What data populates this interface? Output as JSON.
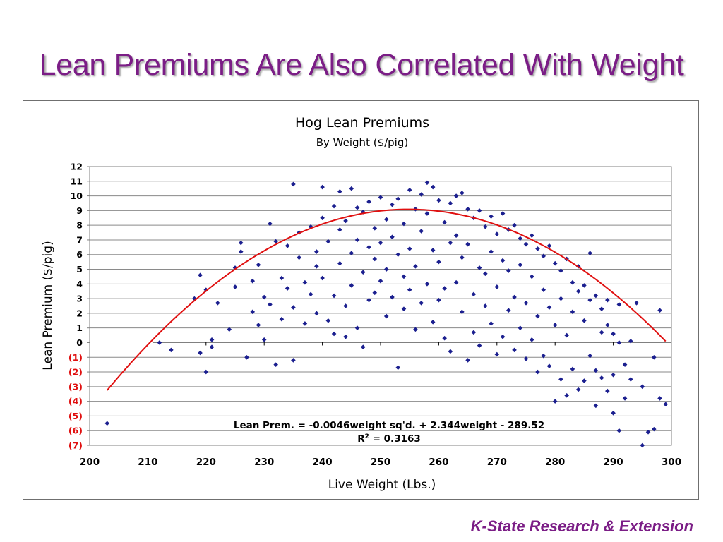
{
  "slide": {
    "title": "Lean Premiums Are Also Correlated With Weight",
    "footer": "K-State Research & Extension"
  },
  "colors": {
    "title": "#7b1d86",
    "points": "#1b1f8f",
    "trendline": "#e01010",
    "negative_ticks": "#e01010"
  },
  "chart_data": {
    "type": "scatter",
    "title": "Hog Lean Premiums",
    "subtitle": "By Weight ($/pig)",
    "xlabel": "Live Weight (Lbs.)",
    "ylabel": "Lean Premium ($/pig)",
    "xlim": [
      200,
      300
    ],
    "ylim": [
      -7,
      12
    ],
    "x_ticks": [
      "200",
      "210",
      "220",
      "230",
      "240",
      "250",
      "260",
      "270",
      "280",
      "290",
      "300"
    ],
    "y_ticks": [
      {
        "value": 12,
        "label": "12"
      },
      {
        "value": 11,
        "label": "11"
      },
      {
        "value": 10,
        "label": "10"
      },
      {
        "value": 9,
        "label": "9"
      },
      {
        "value": 8,
        "label": "8"
      },
      {
        "value": 7,
        "label": "7"
      },
      {
        "value": 6,
        "label": "6"
      },
      {
        "value": 5,
        "label": "5"
      },
      {
        "value": 4,
        "label": "4"
      },
      {
        "value": 3,
        "label": "3"
      },
      {
        "value": 2,
        "label": "2"
      },
      {
        "value": 1,
        "label": "1"
      },
      {
        "value": 0,
        "label": "0"
      },
      {
        "value": -1,
        "label": "(1)"
      },
      {
        "value": -2,
        "label": "(2)"
      },
      {
        "value": -3,
        "label": "(3)"
      },
      {
        "value": -4,
        "label": "(4)"
      },
      {
        "value": -5,
        "label": "(5)"
      },
      {
        "value": -6,
        "label": "(6)"
      },
      {
        "value": -7,
        "label": "(7)"
      }
    ],
    "grid": true,
    "equation": "Lean Prem. = -0.0046weight sq'd. + 2.344weight - 289.52",
    "r_squared_label": "R",
    "r_squared_sup": "2",
    "r_squared_value": " = 0.3163",
    "trendline": {
      "type": "quadratic",
      "a": -0.0046,
      "b": 2.344,
      "c": -289.52,
      "x_range": [
        203,
        299
      ]
    },
    "series": [
      {
        "points": [
          [
            203,
            -5.5
          ],
          [
            212,
            0
          ],
          [
            214,
            -0.5
          ],
          [
            218,
            3
          ],
          [
            219,
            4.6
          ],
          [
            219,
            -0.7
          ],
          [
            220,
            3.6
          ],
          [
            220,
            -2
          ],
          [
            221,
            0.2
          ],
          [
            221,
            -0.3
          ],
          [
            222,
            2.7
          ],
          [
            224,
            0.9
          ],
          [
            225,
            3.8
          ],
          [
            225,
            5.1
          ],
          [
            226,
            6.8
          ],
          [
            226,
            6.2
          ],
          [
            227,
            -1
          ],
          [
            228,
            4.2
          ],
          [
            228,
            2.1
          ],
          [
            229,
            1.2
          ],
          [
            229,
            5.3
          ],
          [
            230,
            3.1
          ],
          [
            230,
            0.2
          ],
          [
            231,
            8.1
          ],
          [
            231,
            2.6
          ],
          [
            232,
            6.9
          ],
          [
            232,
            -1.5
          ],
          [
            233,
            4.4
          ],
          [
            233,
            1.6
          ],
          [
            234,
            3.7
          ],
          [
            234,
            6.6
          ],
          [
            235,
            10.8
          ],
          [
            235,
            2.4
          ],
          [
            235,
            -1.2
          ],
          [
            236,
            5.8
          ],
          [
            236,
            7.5
          ],
          [
            237,
            4.1
          ],
          [
            237,
            1.3
          ],
          [
            238,
            7.9
          ],
          [
            238,
            3.3
          ],
          [
            239,
            6.2
          ],
          [
            239,
            5.2
          ],
          [
            239,
            2.0
          ],
          [
            240,
            10.6
          ],
          [
            240,
            8.5
          ],
          [
            240,
            4.4
          ],
          [
            241,
            1.5
          ],
          [
            241,
            6.9
          ],
          [
            242,
            9.3
          ],
          [
            242,
            3.2
          ],
          [
            242,
            0.6
          ],
          [
            243,
            10.3
          ],
          [
            243,
            7.7
          ],
          [
            243,
            5.4
          ],
          [
            244,
            2.5
          ],
          [
            244,
            8.3
          ],
          [
            244,
            0.4
          ],
          [
            245,
            10.5
          ],
          [
            245,
            6.1
          ],
          [
            245,
            3.9
          ],
          [
            246,
            9.2
          ],
          [
            246,
            7.0
          ],
          [
            246,
            1.0
          ],
          [
            247,
            4.8
          ],
          [
            247,
            8.9
          ],
          [
            247,
            -0.3
          ],
          [
            248,
            6.5
          ],
          [
            248,
            2.9
          ],
          [
            248,
            9.6
          ],
          [
            249,
            5.7
          ],
          [
            249,
            7.8
          ],
          [
            249,
            3.4
          ],
          [
            250,
            9.9
          ],
          [
            250,
            4.2
          ],
          [
            250,
            6.8
          ],
          [
            251,
            1.8
          ],
          [
            251,
            8.4
          ],
          [
            251,
            5.0
          ],
          [
            252,
            9.4
          ],
          [
            252,
            3.1
          ],
          [
            252,
            7.2
          ],
          [
            253,
            -1.7
          ],
          [
            253,
            6.0
          ],
          [
            253,
            9.8
          ],
          [
            254,
            4.5
          ],
          [
            254,
            8.1
          ],
          [
            254,
            2.3
          ],
          [
            255,
            10.4
          ],
          [
            255,
            6.4
          ],
          [
            255,
            3.6
          ],
          [
            256,
            9.1
          ],
          [
            256,
            5.2
          ],
          [
            256,
            0.9
          ],
          [
            257,
            10.1
          ],
          [
            257,
            7.6
          ],
          [
            257,
            2.7
          ],
          [
            258,
            10.9
          ],
          [
            258,
            4.0
          ],
          [
            258,
            8.8
          ],
          [
            259,
            10.6
          ],
          [
            259,
            6.3
          ],
          [
            259,
            1.4
          ],
          [
            260,
            9.7
          ],
          [
            260,
            5.5
          ],
          [
            260,
            2.9
          ],
          [
            261,
            8.2
          ],
          [
            261,
            3.7
          ],
          [
            261,
            0.3
          ],
          [
            262,
            9.5
          ],
          [
            262,
            6.8
          ],
          [
            262,
            -0.6
          ],
          [
            263,
            10.0
          ],
          [
            263,
            4.1
          ],
          [
            263,
            7.3
          ],
          [
            264,
            10.2
          ],
          [
            264,
            2.1
          ],
          [
            264,
            5.8
          ],
          [
            265,
            9.1
          ],
          [
            265,
            -1.2
          ],
          [
            265,
            6.7
          ],
          [
            266,
            8.5
          ],
          [
            266,
            3.3
          ],
          [
            266,
            0.7
          ],
          [
            267,
            9.0
          ],
          [
            267,
            5.1
          ],
          [
            267,
            -0.2
          ],
          [
            268,
            7.9
          ],
          [
            268,
            2.5
          ],
          [
            268,
            4.7
          ],
          [
            269,
            8.6
          ],
          [
            269,
            1.3
          ],
          [
            269,
            6.2
          ],
          [
            270,
            7.4
          ],
          [
            270,
            3.8
          ],
          [
            270,
            -0.8
          ],
          [
            271,
            8.8
          ],
          [
            271,
            5.6
          ],
          [
            271,
            0.4
          ],
          [
            272,
            7.7
          ],
          [
            272,
            2.2
          ],
          [
            272,
            4.9
          ],
          [
            273,
            8.0
          ],
          [
            273,
            -0.5
          ],
          [
            273,
            3.1
          ],
          [
            274,
            7.1
          ],
          [
            274,
            5.3
          ],
          [
            274,
            1.0
          ],
          [
            275,
            6.7
          ],
          [
            275,
            2.7
          ],
          [
            275,
            -1.1
          ],
          [
            276,
            7.3
          ],
          [
            276,
            4.5
          ],
          [
            276,
            0.2
          ],
          [
            277,
            6.4
          ],
          [
            277,
            1.8
          ],
          [
            277,
            -2.0
          ],
          [
            278,
            5.9
          ],
          [
            278,
            3.6
          ],
          [
            278,
            -0.9
          ],
          [
            279,
            6.6
          ],
          [
            279,
            2.4
          ],
          [
            279,
            -1.6
          ],
          [
            280,
            5.4
          ],
          [
            280,
            1.2
          ],
          [
            280,
            -4.0
          ],
          [
            281,
            4.9
          ],
          [
            281,
            3.0
          ],
          [
            281,
            -2.5
          ],
          [
            282,
            5.7
          ],
          [
            282,
            0.5
          ],
          [
            282,
            -3.6
          ],
          [
            283,
            4.1
          ],
          [
            283,
            2.1
          ],
          [
            283,
            -1.8
          ],
          [
            284,
            5.2
          ],
          [
            284,
            3.5
          ],
          [
            284,
            -3.2
          ],
          [
            285,
            3.9
          ],
          [
            285,
            1.5
          ],
          [
            285,
            -2.6
          ],
          [
            286,
            6.1
          ],
          [
            286,
            2.9
          ],
          [
            286,
            -0.9
          ],
          [
            287,
            3.2
          ],
          [
            287,
            -1.9
          ],
          [
            287,
            -4.3
          ],
          [
            288,
            2.3
          ],
          [
            288,
            -2.4
          ],
          [
            288,
            0.7
          ],
          [
            289,
            2.9
          ],
          [
            289,
            1.2
          ],
          [
            289,
            -3.3
          ],
          [
            290,
            0.6
          ],
          [
            290,
            -4.8
          ],
          [
            290,
            -2.2
          ],
          [
            291,
            2.6
          ],
          [
            291,
            -6.0
          ],
          [
            291,
            0.0
          ],
          [
            292,
            -1.5
          ],
          [
            292,
            -3.8
          ],
          [
            293,
            -2.5
          ],
          [
            293,
            0.1
          ],
          [
            294,
            2.7
          ],
          [
            295,
            -3.0
          ],
          [
            295,
            -7.0
          ],
          [
            296,
            -6.1
          ],
          [
            297,
            -5.9
          ],
          [
            297,
            -1.0
          ],
          [
            298,
            2.2
          ],
          [
            298,
            -3.8
          ],
          [
            299,
            -4.2
          ]
        ]
      }
    ]
  }
}
